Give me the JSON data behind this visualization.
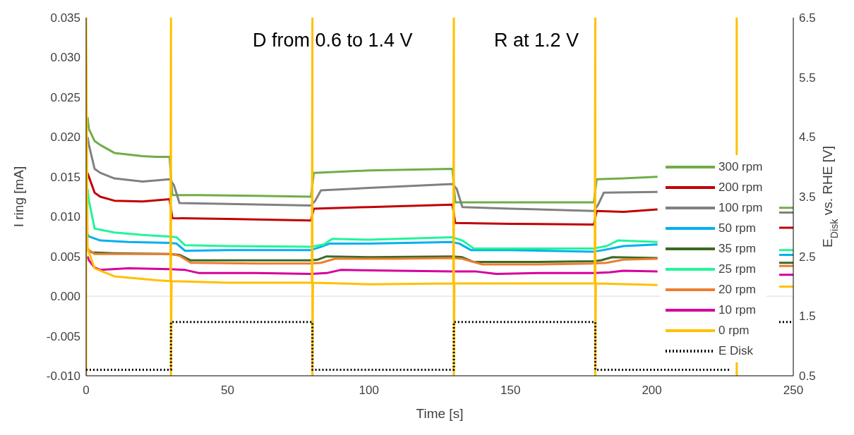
{
  "chart_data": {
    "type": "line",
    "xlabel": "Time [s]",
    "ylabel": "I ring [mA]",
    "y2label": "E$_{Disk}$ vs. RHE [V]",
    "annotations": [
      "D from 0.6 to 1.4 V",
      "R at 1.2 V"
    ],
    "xlim": [
      0,
      250
    ],
    "xticks": [
      0,
      50,
      100,
      150,
      200,
      250
    ],
    "ylim": [
      -0.01,
      0.035
    ],
    "yticks": [
      {
        "value": -0.01,
        "label": "-0.010"
      },
      {
        "value": -0.005,
        "label": "-0.005"
      },
      {
        "value": 0,
        "label": "0.000"
      },
      {
        "value": 0.005,
        "label": "0.005"
      },
      {
        "value": 0.01,
        "label": "0.010"
      },
      {
        "value": 0.015,
        "label": "0.015"
      },
      {
        "value": 0.02,
        "label": "0.020"
      },
      {
        "value": 0.025,
        "label": "0.025"
      },
      {
        "value": 0.03,
        "label": "0.030"
      },
      {
        "value": 0.035,
        "label": "0.035"
      }
    ],
    "y2lim": [
      0.5,
      6.5
    ],
    "y2ticks": [
      0.5,
      1.5,
      2.5,
      3.5,
      4.5,
      5.5,
      6.5
    ],
    "ref_lines": [
      {
        "axis": "y",
        "value": 0,
        "color": "#d9d9d9"
      }
    ],
    "legend": "right",
    "marker": "none",
    "grid": false,
    "series": [
      {
        "name": "300 rpm",
        "color": "#70ad47",
        "x": [
          0.5,
          1,
          3,
          5,
          10,
          15,
          20,
          25,
          29.5,
          30.5,
          40,
          60,
          79.5,
          80.5,
          100,
          129.5,
          130.5,
          150,
          179.5,
          180.5,
          190,
          202,
          203,
          245,
          250
        ],
        "values": [
          0.0225,
          0.021,
          0.0195,
          0.019,
          0.018,
          0.0178,
          0.0176,
          0.0175,
          0.0175,
          0.0127,
          0.0127,
          0.0126,
          0.0125,
          0.0155,
          0.0158,
          0.016,
          0.0118,
          0.0118,
          0.0118,
          0.0147,
          0.0148,
          0.015,
          null,
          0.0111,
          0.0111
        ]
      },
      {
        "name": "200 rpm",
        "color": "#c00000",
        "x": [
          0.5,
          1,
          3,
          5,
          10,
          20,
          29.5,
          30.5,
          50,
          79.5,
          80.5,
          100,
          129.5,
          130.5,
          150,
          179.5,
          180.5,
          190,
          202,
          203,
          245,
          250
        ],
        "values": [
          0.0155,
          0.015,
          0.013,
          0.0125,
          0.012,
          0.0119,
          0.0122,
          0.0098,
          0.0097,
          0.0095,
          0.011,
          0.0112,
          0.0115,
          0.0092,
          0.0091,
          0.009,
          0.0107,
          0.0106,
          0.0109,
          null,
          0.0086,
          0.0086
        ]
      },
      {
        "name": "100 rpm",
        "color": "#808080",
        "x": [
          0.5,
          1,
          3,
          5,
          10,
          20,
          29.5,
          31,
          33,
          50,
          79.5,
          81,
          83,
          100,
          129.5,
          131,
          133,
          150,
          179.5,
          181,
          183,
          202,
          203,
          245,
          250
        ],
        "values": [
          0.02,
          0.019,
          0.016,
          0.0155,
          0.0148,
          0.0144,
          0.0147,
          0.014,
          0.0117,
          0.0116,
          0.0114,
          0.012,
          0.0133,
          0.0136,
          0.0141,
          0.0135,
          0.0112,
          0.011,
          0.0107,
          0.0115,
          0.013,
          0.0131,
          null,
          0.0105,
          0.0105
        ]
      },
      {
        "name": "50 rpm",
        "color": "#00b0f0",
        "x": [
          0.5,
          1,
          5,
          15,
          29.5,
          32,
          35,
          50,
          79.5,
          83,
          86,
          100,
          129.5,
          132,
          136,
          150,
          179.5,
          183,
          190,
          202,
          203,
          245,
          250
        ],
        "values": [
          0.0078,
          0.0075,
          0.007,
          0.0068,
          0.0067,
          0.0066,
          0.0057,
          0.0058,
          0.0058,
          0.0062,
          0.0066,
          0.0066,
          0.0068,
          0.0066,
          0.0058,
          0.0058,
          0.0056,
          0.0058,
          0.0063,
          0.0065,
          null,
          0.0052,
          0.0052
        ]
      },
      {
        "name": "35 rpm",
        "color": "#3a6b24",
        "x": [
          0.5,
          2,
          10,
          29.5,
          33,
          37,
          60,
          79.5,
          82,
          85,
          100,
          129.5,
          133,
          137,
          160,
          179.5,
          182,
          186,
          202,
          203,
          245,
          250
        ],
        "values": [
          0.0058,
          0.0055,
          0.0054,
          0.0053,
          0.0052,
          0.0045,
          0.0045,
          0.0045,
          0.0046,
          0.005,
          0.0049,
          0.005,
          0.0049,
          0.0043,
          0.0043,
          0.0044,
          0.0045,
          0.0049,
          0.0048,
          null,
          0.0042,
          0.0042
        ]
      },
      {
        "name": "25 rpm",
        "color": "#22f59a",
        "x": [
          0.5,
          1,
          3,
          10,
          20,
          29.5,
          32,
          35,
          50,
          79.5,
          84,
          87,
          100,
          129.5,
          133,
          137,
          160,
          179.5,
          184,
          188,
          202,
          203,
          245,
          250
        ],
        "values": [
          0.0135,
          0.012,
          0.0085,
          0.008,
          0.0077,
          0.0075,
          0.0074,
          0.0064,
          0.0063,
          0.0062,
          0.0065,
          0.0072,
          0.0071,
          0.0074,
          0.007,
          0.006,
          0.006,
          0.006,
          0.0063,
          0.007,
          0.0068,
          null,
          0.0058,
          0.0058
        ]
      },
      {
        "name": "20 rpm",
        "color": "#ed7d31",
        "x": [
          0.5,
          1,
          3,
          10,
          29.5,
          33,
          37,
          60,
          79.5,
          83,
          88,
          110,
          129.5,
          133,
          140,
          160,
          179.5,
          184,
          190,
          202,
          203,
          245,
          250
        ],
        "values": [
          0.006,
          0.0058,
          0.0053,
          0.0053,
          0.0053,
          0.0051,
          0.0042,
          0.0041,
          0.0041,
          0.0042,
          0.0047,
          0.0047,
          0.0048,
          0.0047,
          0.004,
          0.004,
          0.0041,
          0.0042,
          0.0046,
          0.0047,
          null,
          0.0038,
          0.0038
        ]
      },
      {
        "name": "10 rpm",
        "color": "#d6009a",
        "x": [
          0.5,
          1,
          3,
          5,
          15,
          29.5,
          35,
          40,
          60,
          79.5,
          85,
          90,
          110,
          129.5,
          138,
          145,
          160,
          179.5,
          185,
          190,
          202,
          203,
          245,
          250
        ],
        "values": [
          0.005,
          0.0045,
          0.0036,
          0.0033,
          0.0035,
          0.0034,
          0.0033,
          0.0029,
          0.0029,
          0.0028,
          0.0029,
          0.0033,
          0.0032,
          0.0031,
          0.0031,
          0.0028,
          0.0029,
          0.0029,
          0.003,
          0.0032,
          0.0031,
          null,
          0.0027,
          0.0027
        ]
      },
      {
        "name": "0 rpm",
        "color": "#ffc000",
        "x": [
          0,
          0,
          0.5,
          1,
          3,
          10,
          25,
          29.8,
          30,
          30,
          30.2,
          50,
          79.8,
          80,
          80,
          80.2,
          100,
          129.8,
          130,
          130,
          130.2,
          179.8,
          180,
          180,
          180.2,
          202,
          203,
          230,
          230,
          231,
          245,
          250
        ],
        "values": [
          -0.01,
          0.035,
          0.006,
          0.0055,
          0.0035,
          0.0025,
          0.002,
          0.0019,
          0.035,
          -0.01,
          0.0019,
          0.0017,
          0.0017,
          0.035,
          -0.01,
          0.0017,
          0.0015,
          0.0016,
          0.035,
          -0.01,
          0.0016,
          0.0016,
          0.035,
          -0.01,
          0.0016,
          0.0014,
          null,
          0.035,
          -0.01,
          null,
          0.0012,
          0.0012
        ]
      },
      {
        "name": "E Disk",
        "color": "#000000",
        "axis": "y2",
        "line_style": "dotted",
        "x": [
          0,
          30,
          30,
          80,
          80,
          130,
          130,
          180,
          180,
          228,
          231,
          245,
          250
        ],
        "values": [
          0.6,
          0.6,
          1.4,
          1.4,
          0.6,
          0.6,
          1.4,
          1.4,
          0.6,
          0.6,
          null,
          1.4,
          1.4
        ]
      }
    ]
  }
}
